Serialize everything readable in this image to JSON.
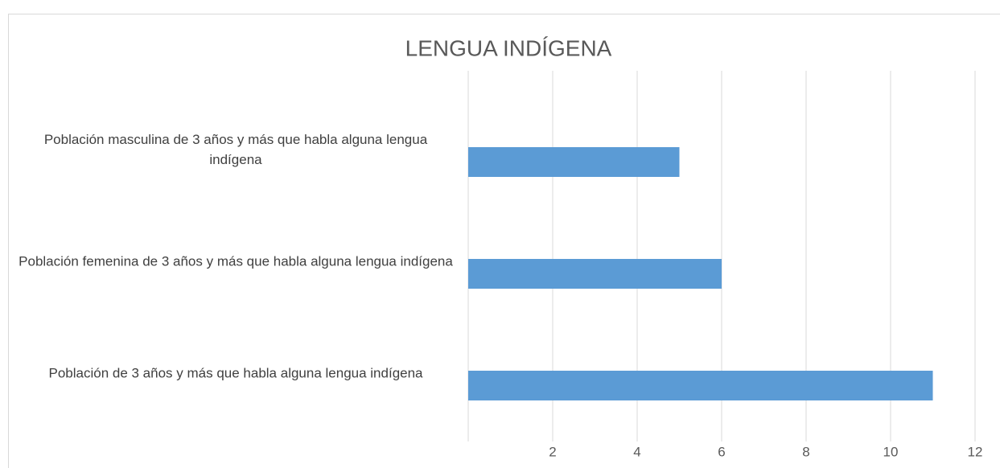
{
  "chart_data": {
    "type": "bar",
    "orientation": "horizontal",
    "title": "LENGUA INDÍGENA",
    "categories": [
      "Población masculina de 3 años y más que habla alguna lengua indígena",
      "Población femenina de 3 años y más que habla alguna lengua indígena",
      "Población de 3 años y más que habla alguna lengua indígena"
    ],
    "values": [
      5,
      6,
      11
    ],
    "color": "#5b9bd5",
    "xlim": [
      0,
      12
    ],
    "xticks": [
      2,
      4,
      6,
      8,
      10,
      12
    ],
    "grid": true
  }
}
